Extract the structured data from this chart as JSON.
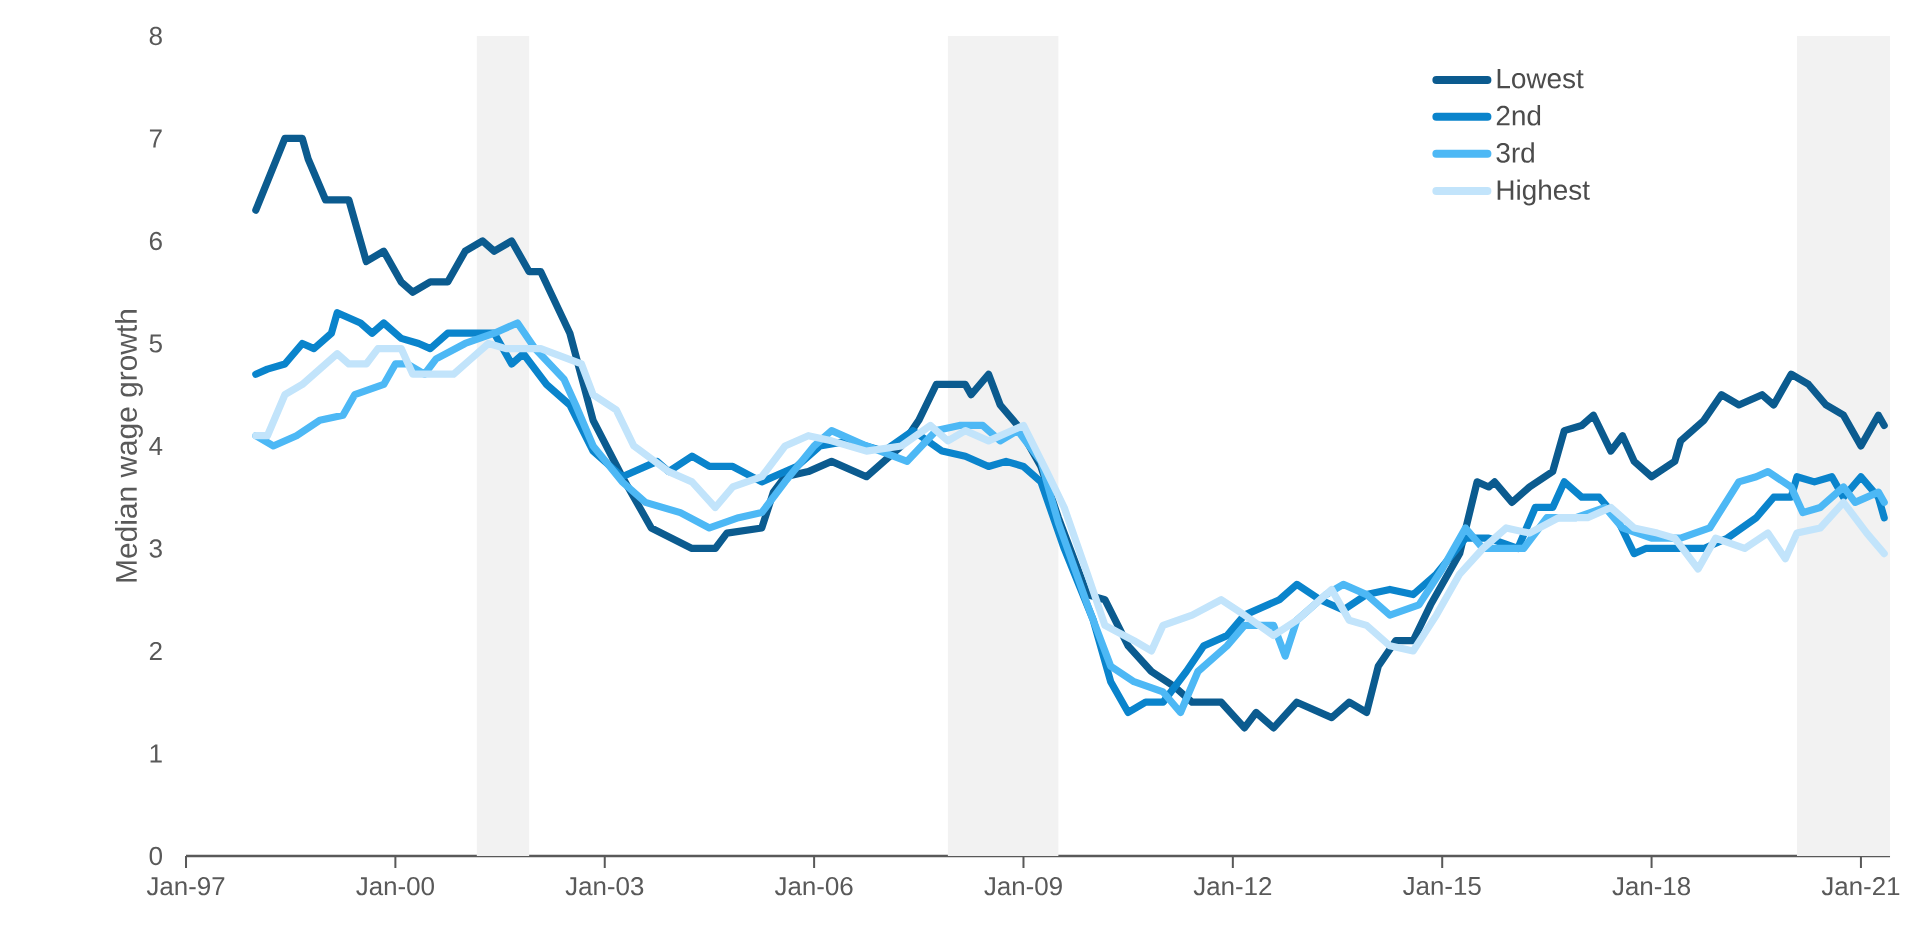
{
  "chart_data": {
    "type": "line",
    "ylabel": "Median wage growth",
    "xlim": [
      "1997-01",
      "2021-06"
    ],
    "ylim": [
      0,
      8
    ],
    "yticks": [
      0,
      1,
      2,
      3,
      4,
      5,
      6,
      7,
      8
    ],
    "xticks": [
      {
        "value": "1997-01",
        "label": "Jan-97"
      },
      {
        "value": "2000-01",
        "label": "Jan-00"
      },
      {
        "value": "2003-01",
        "label": "Jan-03"
      },
      {
        "value": "2006-01",
        "label": "Jan-06"
      },
      {
        "value": "2009-01",
        "label": "Jan-09"
      },
      {
        "value": "2012-01",
        "label": "Jan-12"
      },
      {
        "value": "2015-01",
        "label": "Jan-15"
      },
      {
        "value": "2018-01",
        "label": "Jan-18"
      },
      {
        "value": "2021-01",
        "label": "Jan-21"
      }
    ],
    "legend": "top right",
    "grid": false,
    "marker": "none",
    "line_style": "solid",
    "bands": [
      {
        "axis": "x",
        "from": "2001-03",
        "to": "2001-12",
        "color": "#f2f2f2"
      },
      {
        "axis": "x",
        "from": "2007-12",
        "to": "2009-07",
        "color": "#f2f2f2"
      },
      {
        "axis": "x",
        "from": "2020-02",
        "to": "2021-06",
        "color": "#f2f2f2"
      }
    ],
    "series": [
      {
        "name": "Lowest",
        "color": "#0b5b8f",
        "x": [
          "1998-01",
          "1998-06",
          "1998-09",
          "1998-10",
          "1999-01",
          "1999-05",
          "1999-07",
          "1999-08",
          "1999-11",
          "2000-02",
          "2000-04",
          "2000-07",
          "2000-10",
          "2001-01",
          "2001-04",
          "2001-06",
          "2001-09",
          "2001-12",
          "2002-02",
          "2002-07",
          "2002-11",
          "2003-04",
          "2003-09",
          "2004-04",
          "2004-08",
          "2004-10",
          "2005-04",
          "2005-06",
          "2005-08",
          "2005-12",
          "2006-04",
          "2006-10",
          "2007-04",
          "2007-07",
          "2007-10",
          "2008-03",
          "2008-04",
          "2008-07",
          "2008-09",
          "2008-12",
          "2009-04",
          "2009-07",
          "2009-12",
          "2010-03",
          "2010-07",
          "2010-11",
          "2011-03",
          "2011-06",
          "2011-11",
          "2012-03",
          "2012-05",
          "2012-08",
          "2012-12",
          "2013-06",
          "2013-09",
          "2013-12",
          "2014-02",
          "2014-05",
          "2014-08",
          "2014-11",
          "2015-04",
          "2015-07",
          "2015-09",
          "2015-10",
          "2016-01",
          "2016-04",
          "2016-08",
          "2016-10",
          "2017-01",
          "2017-03",
          "2017-06",
          "2017-08",
          "2017-10",
          "2018-01",
          "2018-05",
          "2018-06",
          "2018-10",
          "2019-01",
          "2019-04",
          "2019-08",
          "2019-10",
          "2020-01",
          "2020-04",
          "2020-07",
          "2020-10",
          "2021-01",
          "2021-04",
          "2021-05"
        ],
        "values": [
          6.3,
          7.0,
          7.0,
          6.8,
          6.4,
          6.4,
          6.0,
          5.8,
          5.9,
          5.6,
          5.5,
          5.6,
          5.6,
          5.9,
          6.0,
          5.9,
          6.0,
          5.7,
          5.7,
          5.1,
          4.25,
          3.7,
          3.2,
          3.0,
          3.0,
          3.15,
          3.2,
          3.55,
          3.7,
          3.75,
          3.85,
          3.7,
          4.0,
          4.25,
          4.6,
          4.6,
          4.5,
          4.7,
          4.4,
          4.2,
          3.8,
          3.3,
          2.55,
          2.5,
          2.05,
          1.8,
          1.65,
          1.5,
          1.5,
          1.25,
          1.4,
          1.25,
          1.5,
          1.35,
          1.5,
          1.4,
          1.85,
          2.1,
          2.1,
          2.45,
          2.95,
          3.65,
          3.6,
          3.65,
          3.45,
          3.6,
          3.75,
          4.15,
          4.2,
          4.3,
          3.95,
          4.1,
          3.85,
          3.7,
          3.85,
          4.05,
          4.25,
          4.5,
          4.4,
          4.5,
          4.4,
          4.7,
          4.6,
          4.4,
          4.3,
          4.0,
          4.3,
          4.2
        ]
      },
      {
        "name": "2nd",
        "color": "#0a84cc",
        "x": [
          "1998-01",
          "1998-03",
          "1998-06",
          "1998-09",
          "1998-11",
          "1999-02",
          "1999-03",
          "1999-07",
          "1999-09",
          "1999-11",
          "2000-02",
          "2000-05",
          "2000-07",
          "2000-10",
          "2001-02",
          "2001-06",
          "2001-09",
          "2001-11",
          "2002-03",
          "2002-07",
          "2002-11",
          "2003-04",
          "2003-10",
          "2003-12",
          "2004-04",
          "2004-07",
          "2004-11",
          "2005-04",
          "2005-08",
          "2005-10",
          "2006-02",
          "2006-07",
          "2007-01",
          "2007-06",
          "2007-11",
          "2008-03",
          "2008-07",
          "2008-10",
          "2009-01",
          "2009-04",
          "2009-08",
          "2010-01",
          "2010-04",
          "2010-07",
          "2010-10",
          "2011-01",
          "2011-05",
          "2011-08",
          "2011-12",
          "2012-03",
          "2012-09",
          "2012-12",
          "2013-04",
          "2013-08",
          "2013-12",
          "2014-04",
          "2014-08",
          "2014-12",
          "2015-05",
          "2015-09",
          "2016-02",
          "2016-05",
          "2016-08",
          "2016-10",
          "2017-01",
          "2017-04",
          "2017-07",
          "2017-10",
          "2017-12",
          "2018-04",
          "2018-10",
          "2019-02",
          "2019-07",
          "2019-10",
          "2020-01",
          "2020-02",
          "2020-05",
          "2020-08",
          "2020-10",
          "2021-01",
          "2021-04",
          "2021-05"
        ],
        "values": [
          4.7,
          4.75,
          4.8,
          5.0,
          4.95,
          5.1,
          5.3,
          5.2,
          5.1,
          5.2,
          5.05,
          5.0,
          4.95,
          5.1,
          5.1,
          5.1,
          4.8,
          4.9,
          4.6,
          4.4,
          3.95,
          3.7,
          3.85,
          3.75,
          3.9,
          3.8,
          3.8,
          3.65,
          3.75,
          3.8,
          4.0,
          4.05,
          3.95,
          4.15,
          3.95,
          3.9,
          3.8,
          3.85,
          3.8,
          3.65,
          3.0,
          2.3,
          1.7,
          1.4,
          1.5,
          1.5,
          1.8,
          2.05,
          2.15,
          2.35,
          2.5,
          2.65,
          2.5,
          2.4,
          2.55,
          2.6,
          2.55,
          2.75,
          3.1,
          3.1,
          3.0,
          3.4,
          3.4,
          3.65,
          3.5,
          3.5,
          3.3,
          2.95,
          3.0,
          3.0,
          3.0,
          3.1,
          3.3,
          3.5,
          3.5,
          3.7,
          3.65,
          3.7,
          3.5,
          3.7,
          3.5,
          3.3
        ]
      },
      {
        "name": "3rd",
        "color": "#4db8f5",
        "x": [
          "1998-01",
          "1998-04",
          "1998-08",
          "1998-12",
          "1999-04",
          "1999-06",
          "1999-11",
          "2000-01",
          "2000-03",
          "2000-06",
          "2000-08",
          "2001-01",
          "2001-06",
          "2001-10",
          "2002-01",
          "2002-06",
          "2002-08",
          "2002-11",
          "2003-04",
          "2003-08",
          "2004-02",
          "2004-07",
          "2004-12",
          "2005-04",
          "2005-08",
          "2006-01",
          "2006-04",
          "2006-10",
          "2007-05",
          "2007-10",
          "2008-02",
          "2008-06",
          "2008-09",
          "2008-12",
          "2009-04",
          "2009-07",
          "2009-12",
          "2010-04",
          "2010-08",
          "2011-01",
          "2011-04",
          "2011-07",
          "2011-12",
          "2012-03",
          "2012-08",
          "2012-10",
          "2012-12",
          "2013-05",
          "2013-08",
          "2013-12",
          "2014-04",
          "2014-09",
          "2015-01",
          "2015-05",
          "2015-08",
          "2016-03",
          "2016-07",
          "2016-12",
          "2017-05",
          "2017-08",
          "2018-01",
          "2018-06",
          "2018-11",
          "2019-04",
          "2019-07",
          "2019-09",
          "2020-01",
          "2020-03",
          "2020-06",
          "2020-10",
          "2020-12",
          "2021-04",
          "2021-05"
        ],
        "values": [
          4.1,
          4.0,
          4.1,
          4.25,
          4.3,
          4.5,
          4.6,
          4.8,
          4.8,
          4.7,
          4.85,
          5.0,
          5.1,
          5.2,
          4.95,
          4.65,
          4.4,
          4.0,
          3.65,
          3.45,
          3.35,
          3.2,
          3.3,
          3.35,
          3.65,
          4.0,
          4.15,
          4.0,
          3.85,
          4.15,
          4.2,
          4.2,
          4.05,
          4.15,
          3.85,
          3.25,
          2.45,
          1.85,
          1.7,
          1.6,
          1.4,
          1.8,
          2.05,
          2.25,
          2.25,
          1.95,
          2.3,
          2.55,
          2.65,
          2.55,
          2.35,
          2.45,
          2.8,
          3.2,
          3.0,
          3.0,
          3.3,
          3.3,
          3.4,
          3.2,
          3.1,
          3.1,
          3.2,
          3.65,
          3.7,
          3.75,
          3.6,
          3.35,
          3.4,
          3.6,
          3.45,
          3.55,
          3.45
        ]
      },
      {
        "name": "Highest",
        "color": "#c2e4fb",
        "x": [
          "1998-01",
          "1998-03",
          "1998-06",
          "1998-09",
          "1999-01",
          "1999-03",
          "1999-05",
          "1999-08",
          "1999-10",
          "2000-02",
          "2000-04",
          "2000-08",
          "2000-11",
          "2001-02",
          "2001-05",
          "2001-08",
          "2002-02",
          "2002-09",
          "2002-11",
          "2003-03",
          "2003-06",
          "2003-12",
          "2004-04",
          "2004-08",
          "2004-11",
          "2005-04",
          "2005-08",
          "2005-12",
          "2006-04",
          "2006-10",
          "2007-04",
          "2007-09",
          "2007-12",
          "2008-03",
          "2008-07",
          "2009-01",
          "2009-05",
          "2009-08",
          "2009-12",
          "2010-03",
          "2010-08",
          "2010-11",
          "2011-01",
          "2011-06",
          "2011-11",
          "2012-03",
          "2012-08",
          "2012-12",
          "2013-06",
          "2013-09",
          "2013-12",
          "2014-04",
          "2014-08",
          "2014-12",
          "2015-04",
          "2015-08",
          "2015-12",
          "2016-04",
          "2016-09",
          "2017-02",
          "2017-06",
          "2017-10",
          "2018-02",
          "2018-05",
          "2018-09",
          "2018-12",
          "2019-05",
          "2019-09",
          "2019-12",
          "2020-02",
          "2020-06",
          "2020-10",
          "2021-02",
          "2021-05"
        ],
        "values": [
          4.1,
          4.1,
          4.5,
          4.6,
          4.8,
          4.9,
          4.8,
          4.8,
          4.95,
          4.95,
          4.7,
          4.7,
          4.7,
          4.85,
          5.0,
          4.95,
          4.95,
          4.8,
          4.5,
          4.35,
          4.0,
          3.75,
          3.65,
          3.4,
          3.6,
          3.7,
          4.0,
          4.1,
          4.05,
          3.95,
          4.0,
          4.2,
          4.05,
          4.15,
          4.05,
          4.2,
          3.75,
          3.4,
          2.75,
          2.25,
          2.1,
          2.0,
          2.25,
          2.35,
          2.5,
          2.35,
          2.15,
          2.3,
          2.6,
          2.3,
          2.25,
          2.05,
          2.0,
          2.35,
          2.75,
          3.0,
          3.2,
          3.15,
          3.3,
          3.3,
          3.4,
          3.2,
          3.15,
          3.1,
          2.8,
          3.1,
          3.0,
          3.15,
          2.9,
          3.15,
          3.2,
          3.45,
          3.15,
          2.95
        ]
      }
    ]
  }
}
